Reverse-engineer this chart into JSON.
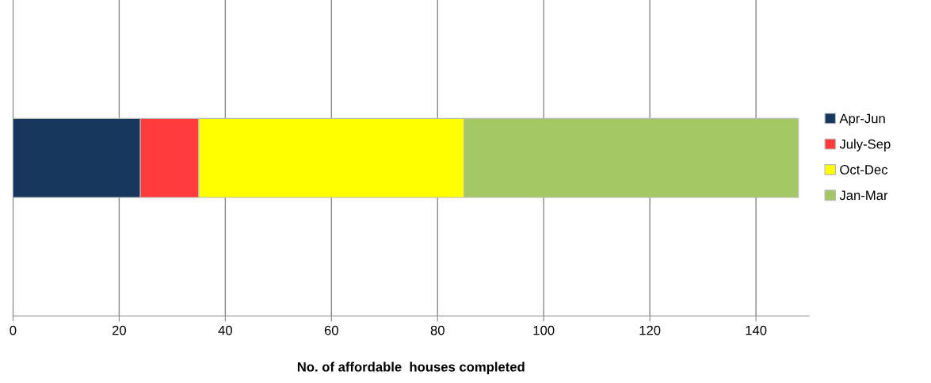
{
  "chart_data": {
    "type": "bar",
    "orientation": "horizontal",
    "stacked": true,
    "xlabel": "No. of affordable  houses completed",
    "categories": [
      null
    ],
    "series": [
      {
        "name": "Apr-Jun",
        "color": "#17375e",
        "values": [
          24
        ]
      },
      {
        "name": "July-Sep",
        "color": "#ff3b3b",
        "values": [
          11
        ]
      },
      {
        "name": "Oct-Dec",
        "color": "#ffff00",
        "values": [
          50
        ]
      },
      {
        "name": "Jan-Mar",
        "color": "#a4c663",
        "values": [
          63
        ]
      }
    ],
    "xlim": [
      0,
      150
    ],
    "xticks": [
      0,
      20,
      40,
      60,
      80,
      100,
      120,
      140
    ],
    "grid": "x",
    "legend": "right"
  }
}
